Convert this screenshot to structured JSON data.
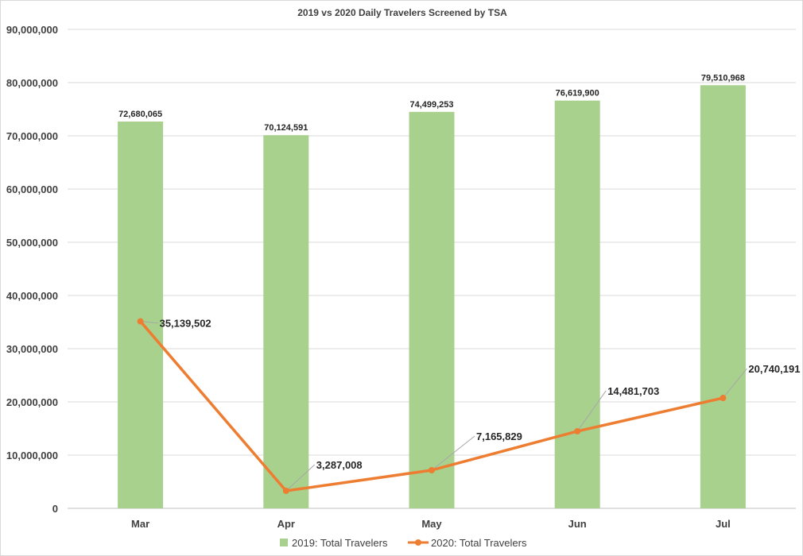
{
  "chart_data": {
    "type": "bar",
    "title": "2019 vs 2020 Daily Travelers Screened by TSA",
    "categories": [
      "Mar",
      "Apr",
      "May",
      "Jun",
      "Jul"
    ],
    "ylim": [
      0,
      90000000
    ],
    "y_ticks": [
      "0",
      "10,000,000",
      "20,000,000",
      "30,000,000",
      "40,000,000",
      "50,000,000",
      "60,000,000",
      "70,000,000",
      "80,000,000",
      "90,000,000"
    ],
    "grid": true,
    "legend_position": "bottom",
    "series": [
      {
        "name": "2019: Total Travelers",
        "type": "bar",
        "color": "#a9d18e",
        "values": [
          72680065,
          70124591,
          74499253,
          76619900,
          79510968
        ],
        "labels": [
          "72,680,065",
          "70,124,591",
          "74,499,253",
          "76,619,900",
          "79,510,968"
        ]
      },
      {
        "name": "2020: Total Travelers",
        "type": "line",
        "color": "#ed7d31",
        "values": [
          35139502,
          3287008,
          7165829,
          14481703,
          20740191
        ],
        "labels": [
          "35,139,502",
          "3,287,008",
          "7,165,829",
          "14,481,703",
          "20,740,191"
        ]
      }
    ]
  }
}
